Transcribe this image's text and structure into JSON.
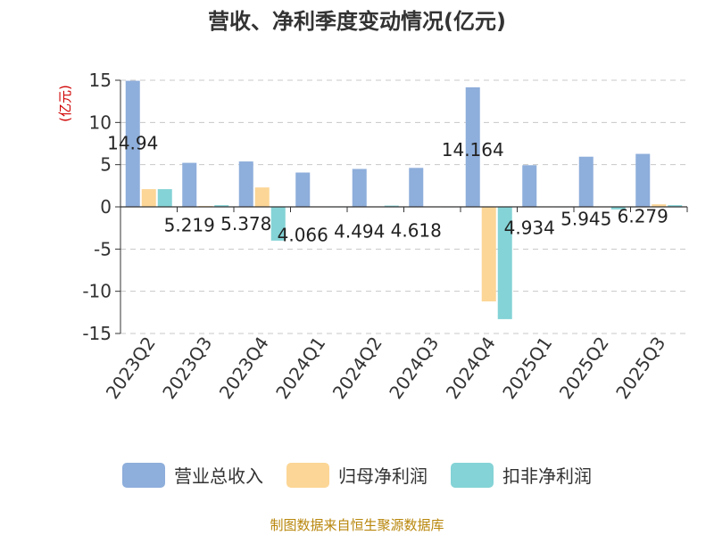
{
  "chart_data": {
    "type": "bar",
    "title": "营收、净利季度变动情况(亿元)",
    "ylabel": "(亿元)",
    "xlabel": "",
    "ylim": [
      -15,
      15
    ],
    "yticks": [
      15,
      10,
      5,
      0,
      -5,
      -10,
      -15
    ],
    "grid": true,
    "legend_position": "bottom",
    "categories": [
      "2023Q2",
      "2023Q3",
      "2023Q4",
      "2024Q1",
      "2024Q2",
      "2024Q3",
      "2024Q4",
      "2025Q1",
      "2025Q2",
      "2025Q3"
    ],
    "series": [
      {
        "name": "营业总收入",
        "color": "#8eaedb",
        "values": [
          14.94,
          5.219,
          5.378,
          4.066,
          4.494,
          4.618,
          14.164,
          4.934,
          5.945,
          6.279
        ],
        "labels": [
          "14.94",
          "5.219",
          "5.378",
          "4.066",
          "4.494",
          "4.618",
          "14.164",
          "4.934",
          "5.945",
          "6.279"
        ]
      },
      {
        "name": "归母净利润",
        "color": "#fcd696",
        "values": [
          2.1,
          0.1,
          2.3,
          0.05,
          0.05,
          0.05,
          -11.2,
          0.05,
          0.05,
          0.3
        ]
      },
      {
        "name": "扣非净利润",
        "color": "#84d3d6",
        "values": [
          2.1,
          0.2,
          -4.0,
          0.05,
          0.15,
          0.05,
          -13.3,
          0.05,
          -0.3,
          0.2
        ]
      }
    ]
  },
  "source": "制图数据来自恒生聚源数据库"
}
